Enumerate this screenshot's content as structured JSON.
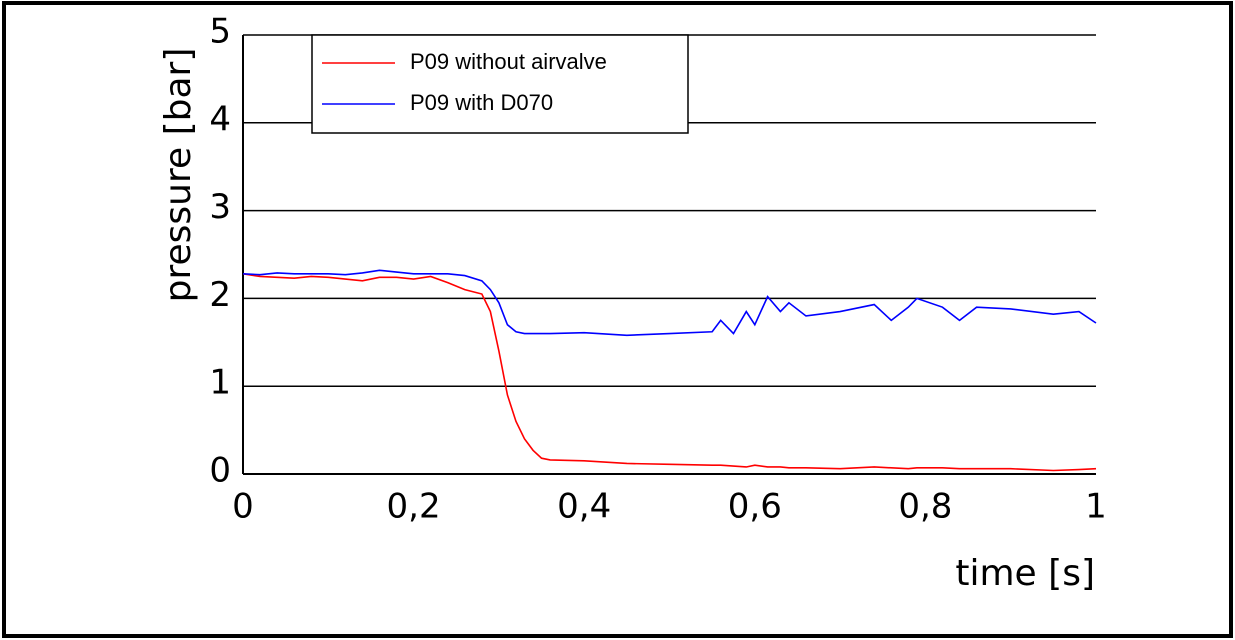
{
  "chart_data": {
    "type": "line",
    "xlabel": "time [s]",
    "ylabel": "pressure [bar]",
    "x": [
      0,
      0.02,
      0.04,
      0.06,
      0.08,
      0.1,
      0.12,
      0.14,
      0.16,
      0.18,
      0.2,
      0.22,
      0.24,
      0.26,
      0.28,
      0.29,
      0.3,
      0.31,
      0.32,
      0.33,
      0.34,
      0.35,
      0.36,
      0.4,
      0.45,
      0.5,
      0.55,
      0.56,
      0.575,
      0.59,
      0.6,
      0.615,
      0.63,
      0.64,
      0.66,
      0.7,
      0.74,
      0.76,
      0.78,
      0.79,
      0.82,
      0.84,
      0.86,
      0.9,
      0.95,
      0.98,
      1
    ],
    "series": [
      {
        "name": "P09 without airvalve",
        "color": "#ff0000",
        "values": [
          2.28,
          2.25,
          2.24,
          2.23,
          2.25,
          2.24,
          2.22,
          2.2,
          2.24,
          2.24,
          2.22,
          2.25,
          2.18,
          2.1,
          2.05,
          1.85,
          1.4,
          0.9,
          0.6,
          0.4,
          0.27,
          0.18,
          0.16,
          0.15,
          0.12,
          0.11,
          0.1,
          0.1,
          0.09,
          0.08,
          0.1,
          0.08,
          0.08,
          0.07,
          0.07,
          0.06,
          0.08,
          0.07,
          0.06,
          0.07,
          0.07,
          0.06,
          0.06,
          0.06,
          0.04,
          0.05,
          0.06
        ]
      },
      {
        "name": "P09 with D070",
        "color": "#0000ff",
        "values": [
          2.28,
          2.27,
          2.29,
          2.28,
          2.28,
          2.28,
          2.27,
          2.29,
          2.32,
          2.3,
          2.28,
          2.28,
          2.28,
          2.26,
          2.2,
          2.1,
          1.95,
          1.7,
          1.62,
          1.6,
          1.6,
          1.6,
          1.6,
          1.61,
          1.58,
          1.6,
          1.62,
          1.75,
          1.6,
          1.85,
          1.7,
          2.02,
          1.85,
          1.95,
          1.8,
          1.85,
          1.93,
          1.75,
          1.9,
          2.0,
          1.9,
          1.75,
          1.9,
          1.88,
          1.82,
          1.85,
          1.72
        ]
      }
    ],
    "xlim": [
      0,
      1
    ],
    "xticks": [
      0,
      {
        "value": 0.2,
        "label": "0,2"
      },
      {
        "value": 0.4,
        "label": "0,4"
      },
      {
        "value": 0.6,
        "label": "0,6"
      },
      {
        "value": 0.8,
        "label": "0,8"
      },
      1
    ],
    "ylim": [
      0,
      5
    ],
    "yticks": [
      0,
      1,
      2,
      3,
      4,
      5
    ],
    "grid": true,
    "legend": "upper left"
  }
}
